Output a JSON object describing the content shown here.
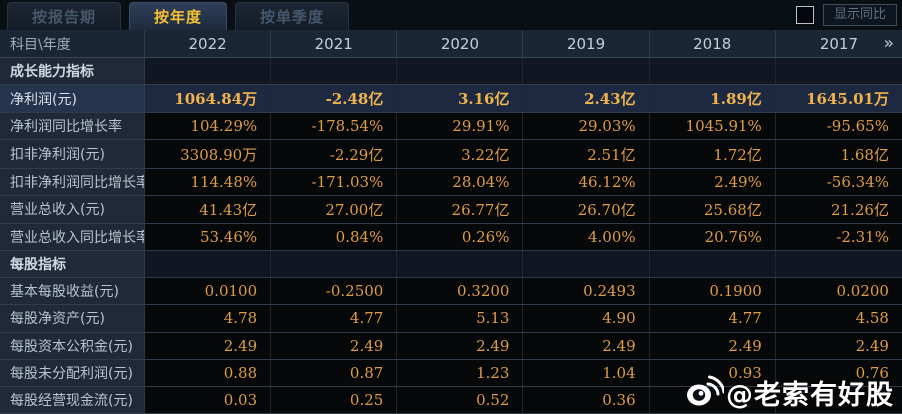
{
  "tabs": [
    {
      "id": "report-period",
      "label": "按报告期",
      "active": false
    },
    {
      "id": "annual",
      "label": "按年度",
      "active": true
    },
    {
      "id": "quarterly",
      "label": "按单季度",
      "active": false
    }
  ],
  "controls": {
    "show_yoy_label": "显示同比",
    "yoy_checked": false
  },
  "table": {
    "corner_label": "科目\\年度",
    "years": [
      "2022",
      "2021",
      "2020",
      "2019",
      "2018",
      "2017"
    ],
    "more_columns_glyph": "»",
    "rows": [
      {
        "type": "section",
        "highlight": false,
        "label": "成长能力指标",
        "values": [
          "",
          "",
          "",
          "",
          "",
          ""
        ]
      },
      {
        "type": "data",
        "highlight": true,
        "label": "净利润(元)",
        "values": [
          "1064.84万",
          "-2.48亿",
          "3.16亿",
          "2.43亿",
          "1.89亿",
          "1645.01万"
        ]
      },
      {
        "type": "data",
        "highlight": false,
        "label": "净利润同比增长率",
        "values": [
          "104.29%",
          "-178.54%",
          "29.91%",
          "29.03%",
          "1045.91%",
          "-95.65%"
        ]
      },
      {
        "type": "data",
        "highlight": false,
        "label": "扣非净利润(元)",
        "values": [
          "3308.90万",
          "-2.29亿",
          "3.22亿",
          "2.51亿",
          "1.72亿",
          "1.68亿"
        ]
      },
      {
        "type": "data",
        "highlight": false,
        "label": "扣非净利润同比增长率",
        "values": [
          "114.48%",
          "-171.03%",
          "28.04%",
          "46.12%",
          "2.49%",
          "-56.34%"
        ]
      },
      {
        "type": "data",
        "highlight": false,
        "label": "营业总收入(元)",
        "values": [
          "41.43亿",
          "27.00亿",
          "26.77亿",
          "26.70亿",
          "25.68亿",
          "21.26亿"
        ]
      },
      {
        "type": "data",
        "highlight": false,
        "label": "营业总收入同比增长率",
        "values": [
          "53.46%",
          "0.84%",
          "0.26%",
          "4.00%",
          "20.76%",
          "-2.31%"
        ]
      },
      {
        "type": "section",
        "highlight": false,
        "label": "每股指标",
        "values": [
          "",
          "",
          "",
          "",
          "",
          ""
        ]
      },
      {
        "type": "data",
        "highlight": false,
        "label": "基本每股收益(元)",
        "values": [
          "0.0100",
          "-0.2500",
          "0.3200",
          "0.2493",
          "0.1900",
          "0.0200"
        ]
      },
      {
        "type": "data",
        "highlight": false,
        "label": "每股净资产(元)",
        "values": [
          "4.78",
          "4.77",
          "5.13",
          "4.90",
          "4.77",
          "4.58"
        ]
      },
      {
        "type": "data",
        "highlight": false,
        "label": "每股资本公积金(元)",
        "values": [
          "2.49",
          "2.49",
          "2.49",
          "2.49",
          "2.49",
          "2.49"
        ]
      },
      {
        "type": "data",
        "highlight": false,
        "label": "每股未分配利润(元)",
        "values": [
          "0.88",
          "0.87",
          "1.23",
          "1.04",
          "0.93",
          "0.76"
        ]
      },
      {
        "type": "data",
        "highlight": false,
        "label": "每股经营现金流(元)",
        "values": [
          "0.03",
          "0.25",
          "0.52",
          "0.36",
          "",
          ""
        ]
      }
    ]
  },
  "watermark": {
    "icon": "weibo-icon",
    "text": "@老索有好股"
  },
  "colors": {
    "page_bg": "#0a0f16",
    "header_bg": "#1b2634",
    "label_col_bg": "#1f2937",
    "value_bg": "#060809",
    "highlight_row_bg": "#1d2941",
    "value_text": "#dd9c46",
    "highlight_value_text": "#f0b44e",
    "active_tab_text": "#f5c031",
    "inactive_tab_text": "#46576c",
    "watermark_text": "#ffffff"
  }
}
